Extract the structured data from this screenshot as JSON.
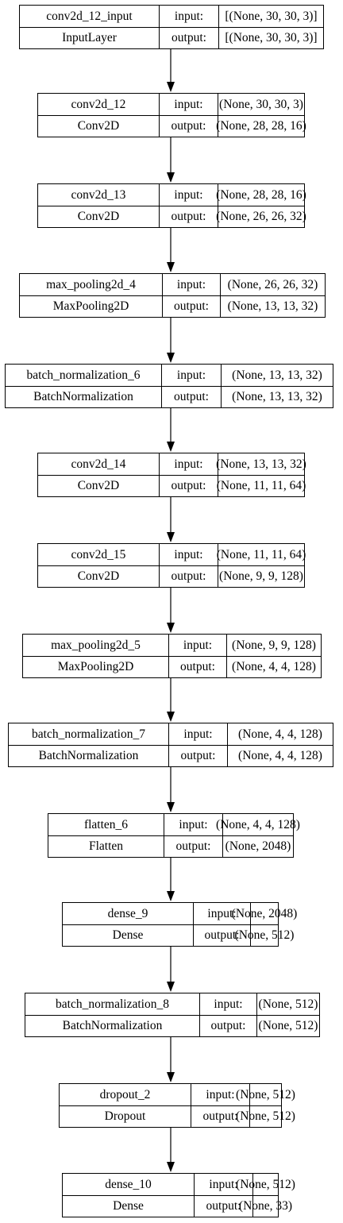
{
  "layers": [
    {
      "name": "conv2d_12_input",
      "type": "InputLayer",
      "input_label": "input:",
      "output_label": "output:",
      "input_shape": "[(None, 30, 30, 3)]",
      "output_shape": "[(None, 30, 30, 3)]"
    },
    {
      "name": "conv2d_12",
      "type": "Conv2D",
      "input_label": "input:",
      "output_label": "output:",
      "input_shape": "(None, 30, 30, 3)",
      "output_shape": "(None, 28, 28, 16)"
    },
    {
      "name": "conv2d_13",
      "type": "Conv2D",
      "input_label": "input:",
      "output_label": "output:",
      "input_shape": "(None, 28, 28, 16)",
      "output_shape": "(None, 26, 26, 32)"
    },
    {
      "name": "max_pooling2d_4",
      "type": "MaxPooling2D",
      "input_label": "input:",
      "output_label": "output:",
      "input_shape": "(None, 26, 26, 32)",
      "output_shape": "(None, 13, 13, 32)"
    },
    {
      "name": "batch_normalization_6",
      "type": "BatchNormalization",
      "input_label": "input:",
      "output_label": "output:",
      "input_shape": "(None, 13, 13, 32)",
      "output_shape": "(None, 13, 13, 32)"
    },
    {
      "name": "conv2d_14",
      "type": "Conv2D",
      "input_label": "input:",
      "output_label": "output:",
      "input_shape": "(None, 13, 13, 32)",
      "output_shape": "(None, 11, 11, 64)"
    },
    {
      "name": "conv2d_15",
      "type": "Conv2D",
      "input_label": "input:",
      "output_label": "output:",
      "input_shape": "(None, 11, 11, 64)",
      "output_shape": "(None, 9, 9, 128)"
    },
    {
      "name": "max_pooling2d_5",
      "type": "MaxPooling2D",
      "input_label": "input:",
      "output_label": "output:",
      "input_shape": "(None, 9, 9, 128)",
      "output_shape": "(None, 4, 4, 128)"
    },
    {
      "name": "batch_normalization_7",
      "type": "BatchNormalization",
      "input_label": "input:",
      "output_label": "output:",
      "input_shape": "(None, 4, 4, 128)",
      "output_shape": "(None, 4, 4, 128)"
    },
    {
      "name": "flatten_6",
      "type": "Flatten",
      "input_label": "input:",
      "output_label": "output:",
      "input_shape": "(None, 4, 4, 128)",
      "output_shape": "(None, 2048)"
    },
    {
      "name": "dense_9",
      "type": "Dense",
      "input_label": "input:",
      "output_label": "output:",
      "input_shape": "(None, 2048)",
      "output_shape": "(None, 512)"
    },
    {
      "name": "batch_normalization_8",
      "type": "BatchNormalization",
      "input_label": "input:",
      "output_label": "output:",
      "input_shape": "(None, 512)",
      "output_shape": "(None, 512)"
    },
    {
      "name": "dropout_2",
      "type": "Dropout",
      "input_label": "input:",
      "output_label": "output:",
      "input_shape": "(None, 512)",
      "output_shape": "(None, 512)"
    },
    {
      "name": "dense_10",
      "type": "Dense",
      "input_label": "input:",
      "output_label": "output:",
      "input_shape": "(None, 512)",
      "output_shape": "(None, 33)"
    }
  ],
  "colors": {
    "stroke": "#000000",
    "background": "#ffffff",
    "text": "#000000"
  }
}
